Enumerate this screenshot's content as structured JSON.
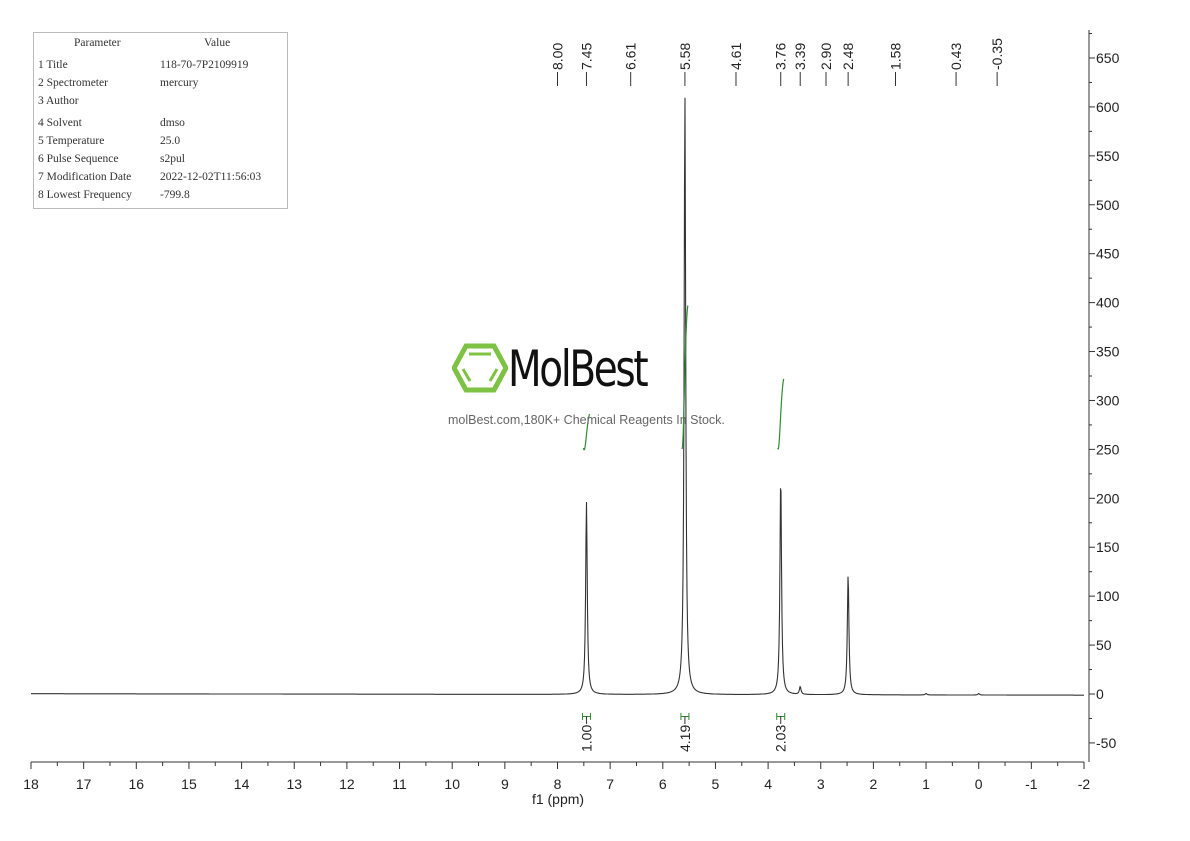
{
  "parameters": {
    "header": [
      "Parameter",
      "Value"
    ],
    "rows": [
      [
        "1 Title",
        "118-70-7P2109919"
      ],
      [
        "2 Spectrometer",
        "mercury"
      ],
      [
        "3 Author",
        ""
      ],
      [
        "4 Solvent",
        "dmso"
      ],
      [
        "5 Temperature",
        "25.0"
      ],
      [
        "6 Pulse Sequence",
        "s2pul"
      ],
      [
        "7 Modification Date",
        "2022-12-02T11:56:03"
      ],
      [
        "8 Lowest Frequency",
        "-799.8"
      ]
    ]
  },
  "watermark": {
    "brand": "MolBest",
    "tagline": "molBest.com,180K+ Chemical Reagents In Stock.",
    "brand_color": "#7dc242"
  },
  "chart_data": {
    "type": "line",
    "xlabel": "f1 (ppm)",
    "ylabel": "",
    "xlim": [
      18,
      -2
    ],
    "ylim": [
      -70,
      660
    ],
    "x_ticks": [
      "18",
      "17",
      "16",
      "15",
      "14",
      "13",
      "12",
      "11",
      "10",
      "9",
      "8",
      "7",
      "6",
      "5",
      "4",
      "3",
      "2",
      "1",
      "0",
      "-1",
      "-2"
    ],
    "y_ticks": [
      "-50",
      "0",
      "50",
      "100",
      "150",
      "200",
      "250",
      "300",
      "350",
      "400",
      "450",
      "500",
      "550",
      "600",
      "650"
    ],
    "peak_labels": [
      "8.00",
      "7.45",
      "6.61",
      "5.58",
      "4.61",
      "3.76",
      "3.39",
      "2.90",
      "2.48",
      "1.58",
      "0.43",
      "-0.35"
    ],
    "peaks": [
      {
        "ppm": 7.45,
        "height": 197
      },
      {
        "ppm": 5.58,
        "height": 615
      },
      {
        "ppm": 3.76,
        "height": 224
      },
      {
        "ppm": 3.39,
        "height": 8
      },
      {
        "ppm": 2.48,
        "height": 123
      },
      {
        "ppm": 1.0,
        "height": 1.5
      },
      {
        "ppm": 0.0,
        "height": 1.5
      }
    ],
    "integrals": [
      {
        "ppm": 7.45,
        "value": "1.00"
      },
      {
        "ppm": 5.58,
        "value": "4.19"
      },
      {
        "ppm": 3.76,
        "value": "2.03"
      }
    ],
    "line_color": "#333333",
    "integral_color": "#2e8b2e",
    "grid": false
  }
}
